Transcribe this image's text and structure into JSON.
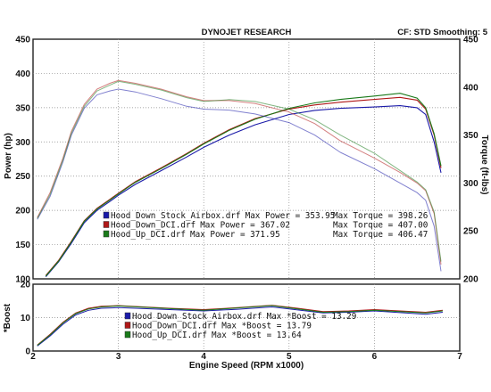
{
  "header": {
    "title": "DYNOJET RESEARCH",
    "settings": "CF: STD   Smoothing: 5"
  },
  "chart_data": [
    {
      "type": "line",
      "panel": "power-torque",
      "xlabel": "Engine Speed (RPM x1000)",
      "ylabel_left": "Power (hp)",
      "ylabel_right": "Torque (ft-lbs)",
      "xlim": [
        2,
        7
      ],
      "ylim_left": [
        100,
        450
      ],
      "ylim_right": [
        200,
        450
      ],
      "x_ticks": [
        "2",
        "3",
        "4",
        "5",
        "6",
        "7"
      ],
      "y_ticks_left": [
        "100",
        "150",
        "200",
        "250",
        "300",
        "350",
        "400",
        "450"
      ],
      "y_ticks_right": [
        "200",
        "250",
        "300",
        "350",
        "400",
        "450"
      ],
      "grid": true,
      "legend_position": "center",
      "legend": [
        {
          "file": "Hood_Down_Stock_Airbox.drf",
          "text1": "Max Power = 353.95",
          "text2": "Max Torque = 398.26",
          "color": "#1a1aa8"
        },
        {
          "file": "Hood_Down_DCI.drf",
          "text1": "Max Power = 367.02",
          "text2": "Max Torque = 407.00",
          "color": "#b01818"
        },
        {
          "file": "Hood_Up_DCI.drf",
          "text1": "Max Power = 371.95",
          "text2": "Max Torque = 406.47",
          "color": "#1a7a1a"
        }
      ],
      "power_series": [
        {
          "name": "Hood_Down_Stock_Airbox.drf",
          "color": "#1a1aa8",
          "x": [
            2.15,
            2.3,
            2.45,
            2.6,
            2.75,
            2.9,
            3.0,
            3.2,
            3.5,
            3.8,
            4.0,
            4.3,
            4.6,
            5.0,
            5.3,
            5.6,
            6.0,
            6.3,
            6.5,
            6.6,
            6.7,
            6.78
          ],
          "y": [
            103,
            125,
            152,
            182,
            200,
            213,
            222,
            238,
            258,
            278,
            292,
            310,
            325,
            340,
            346,
            349,
            351,
            353,
            350,
            340,
            300,
            255
          ]
        },
        {
          "name": "Hood_Down_DCI.drf",
          "color": "#b01818",
          "x": [
            2.15,
            2.3,
            2.45,
            2.6,
            2.75,
            2.9,
            3.0,
            3.2,
            3.5,
            3.8,
            4.0,
            4.3,
            4.6,
            5.0,
            5.3,
            5.6,
            6.0,
            6.3,
            6.5,
            6.6,
            6.7,
            6.78
          ],
          "y": [
            105,
            127,
            155,
            185,
            203,
            216,
            225,
            242,
            262,
            283,
            298,
            318,
            334,
            348,
            354,
            358,
            362,
            365,
            361,
            348,
            310,
            262
          ]
        },
        {
          "name": "Hood_Up_DCI.drf",
          "color": "#1a7a1a",
          "x": [
            2.15,
            2.3,
            2.45,
            2.6,
            2.75,
            2.9,
            3.0,
            3.2,
            3.5,
            3.8,
            4.0,
            4.3,
            4.6,
            5.0,
            5.3,
            5.6,
            6.0,
            6.3,
            6.5,
            6.6,
            6.7,
            6.78
          ],
          "y": [
            104,
            126,
            154,
            184,
            202,
            215,
            224,
            241,
            261,
            282,
            297,
            317,
            333,
            349,
            357,
            362,
            367,
            371,
            364,
            350,
            312,
            265
          ]
        }
      ],
      "torque_series": [
        {
          "name": "Hood_Down_Stock_Airbox.drf",
          "color": "#1a1aa8",
          "x": [
            2.05,
            2.2,
            2.35,
            2.45,
            2.6,
            2.75,
            2.9,
            3.0,
            3.2,
            3.5,
            3.8,
            4.0,
            4.3,
            4.6,
            5.0,
            5.3,
            5.6,
            6.0,
            6.3,
            6.5,
            6.6,
            6.7,
            6.78
          ],
          "y": [
            262,
            286,
            322,
            350,
            378,
            392,
            396,
            398,
            395,
            388,
            380,
            377,
            376,
            372,
            363,
            350,
            332,
            315,
            300,
            290,
            282,
            255,
            208
          ]
        },
        {
          "name": "Hood_Down_DCI.drf",
          "color": "#b01818",
          "x": [
            2.05,
            2.2,
            2.35,
            2.45,
            2.6,
            2.75,
            2.9,
            3.0,
            3.2,
            3.5,
            3.8,
            4.0,
            4.3,
            4.6,
            5.0,
            5.3,
            5.6,
            6.0,
            6.3,
            6.5,
            6.6,
            6.7,
            6.78
          ],
          "y": [
            264,
            290,
            326,
            354,
            382,
            398,
            404,
            407,
            404,
            398,
            390,
            386,
            386,
            383,
            374,
            362,
            344,
            326,
            311,
            300,
            292,
            268,
            215
          ]
        },
        {
          "name": "Hood_Up_DCI.drf",
          "color": "#1a7a1a",
          "x": [
            2.05,
            2.2,
            2.35,
            2.45,
            2.6,
            2.75,
            2.9,
            3.0,
            3.2,
            3.5,
            3.8,
            4.0,
            4.3,
            4.6,
            5.0,
            5.3,
            5.6,
            6.0,
            6.3,
            6.5,
            6.6,
            6.7,
            6.78
          ],
          "y": [
            263,
            288,
            324,
            352,
            380,
            396,
            402,
            406,
            403,
            397,
            389,
            385,
            387,
            385,
            377,
            366,
            350,
            331,
            313,
            301,
            293,
            270,
            218
          ]
        }
      ]
    },
    {
      "type": "line",
      "panel": "boost",
      "ylabel": "*Boost",
      "xlim": [
        2,
        7
      ],
      "ylim": [
        0,
        20
      ],
      "y_ticks": [
        "0",
        "10",
        "20"
      ],
      "grid": true,
      "legend": [
        {
          "file": "Hood_Down_Stock_Airbox.drf",
          "text1": "Max *Boost = 13.29",
          "color": "#1a1aa8"
        },
        {
          "file": "Hood_Down_DCI.drf",
          "text1": "Max *Boost = 13.79",
          "color": "#b01818"
        },
        {
          "file": "Hood_Up_DCI.drf",
          "text1": "Max *Boost = 13.64",
          "color": "#1a7a1a"
        }
      ],
      "series": [
        {
          "name": "Hood_Down_Stock_Airbox.drf",
          "color": "#1a1aa8",
          "x": [
            2.05,
            2.2,
            2.35,
            2.5,
            2.65,
            2.8,
            3.0,
            3.3,
            3.6,
            4.0,
            4.4,
            4.8,
            5.1,
            5.4,
            5.7,
            6.0,
            6.3,
            6.6,
            6.8
          ],
          "y": [
            1.5,
            4.5,
            8.0,
            10.8,
            12.2,
            12.8,
            13.0,
            12.7,
            12.4,
            12.0,
            12.5,
            13.2,
            12.3,
            11.4,
            11.6,
            12.0,
            11.5,
            11.0,
            11.6
          ]
        },
        {
          "name": "Hood_Down_DCI.drf",
          "color": "#b01818",
          "x": [
            2.05,
            2.2,
            2.35,
            2.5,
            2.65,
            2.8,
            3.0,
            3.3,
            3.6,
            4.0,
            4.4,
            4.8,
            5.1,
            5.4,
            5.7,
            6.0,
            6.3,
            6.6,
            6.8
          ],
          "y": [
            1.8,
            5.0,
            8.6,
            11.4,
            12.8,
            13.4,
            13.6,
            13.2,
            12.8,
            12.4,
            13.0,
            13.7,
            12.8,
            11.8,
            12.0,
            12.4,
            12.0,
            11.6,
            12.2
          ]
        },
        {
          "name": "Hood_Up_DCI.drf",
          "color": "#1a7a1a",
          "x": [
            2.05,
            2.2,
            2.35,
            2.5,
            2.65,
            2.8,
            3.0,
            3.3,
            3.6,
            4.0,
            4.4,
            4.8,
            5.1,
            5.4,
            5.7,
            6.0,
            6.3,
            6.6,
            6.8
          ],
          "y": [
            1.7,
            4.8,
            8.4,
            11.2,
            12.6,
            13.2,
            13.5,
            13.1,
            12.7,
            12.2,
            12.9,
            13.6,
            12.6,
            11.6,
            11.8,
            12.2,
            11.8,
            11.4,
            12.0
          ]
        }
      ]
    }
  ]
}
